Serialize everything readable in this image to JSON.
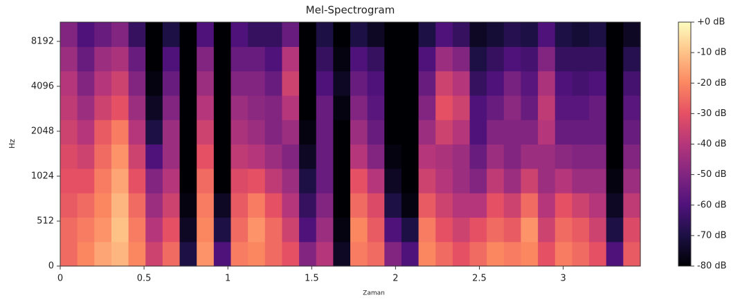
{
  "chart_data": {
    "type": "heatmap",
    "title": "Mel-Spectrogram",
    "xlabel": "Zaman",
    "ylabel": "Hz",
    "colormap": "magma",
    "xlim": [
      0,
      3.46
    ],
    "xticks": [
      0,
      0.5,
      1,
      1.5,
      2,
      2.5,
      3
    ],
    "ylim": [
      0,
      11025
    ],
    "yscale": "symlog",
    "ybase": 2,
    "linthresh": 512,
    "yticks": [
      0,
      512,
      1024,
      2048,
      4096,
      8192
    ],
    "clim": [
      -80,
      0
    ],
    "cticks": [
      {
        "value": 0,
        "label": "+0 dB"
      },
      {
        "value": -10,
        "label": "-10 dB"
      },
      {
        "value": -20,
        "label": "-20 dB"
      },
      {
        "value": -30,
        "label": "-30 dB"
      },
      {
        "value": -40,
        "label": "-40 dB"
      },
      {
        "value": -50,
        "label": "-50 dB"
      },
      {
        "value": -60,
        "label": "-60 dB"
      },
      {
        "value": -70,
        "label": "-70 dB"
      },
      {
        "value": -80,
        "label": "-80 dB"
      }
    ],
    "values": [
      [
        -25,
        -25,
        -28,
        -30,
        -32,
        -35,
        -38,
        -40,
        -45,
        -50
      ],
      [
        -20,
        -22,
        -25,
        -30,
        -35,
        -40,
        -45,
        -50,
        -55,
        -60
      ],
      [
        -15,
        -18,
        -20,
        -22,
        -25,
        -28,
        -35,
        -40,
        -45,
        -55
      ],
      [
        -12,
        -10,
        -12,
        -15,
        -18,
        -22,
        -30,
        -35,
        -42,
        -50
      ],
      [
        -20,
        -22,
        -25,
        -30,
        -35,
        -40,
        -45,
        -50,
        -55,
        -65
      ],
      [
        -35,
        -40,
        -45,
        -50,
        -60,
        -70,
        -75,
        -78,
        -80,
        -80
      ],
      [
        -25,
        -30,
        -35,
        -40,
        -45,
        -45,
        -50,
        -55,
        -60,
        -70
      ],
      [
        -70,
        -75,
        -78,
        -80,
        -80,
        -80,
        -80,
        -80,
        -80,
        -80
      ],
      [
        -18,
        -20,
        -22,
        -25,
        -30,
        -35,
        -40,
        -45,
        -50,
        -60
      ],
      [
        -60,
        -70,
        -75,
        -80,
        -80,
        -80,
        -80,
        -80,
        -80,
        -80
      ],
      [
        -22,
        -25,
        -28,
        -32,
        -38,
        -42,
        -45,
        -50,
        -55,
        -60
      ],
      [
        -20,
        -18,
        -22,
        -30,
        -40,
        -45,
        -48,
        -50,
        -55,
        -65
      ],
      [
        -25,
        -25,
        -30,
        -38,
        -45,
        -50,
        -50,
        -55,
        -60,
        -65
      ],
      [
        -30,
        -35,
        -40,
        -45,
        -50,
        -45,
        -40,
        -35,
        -40,
        -55
      ],
      [
        -50,
        -60,
        -65,
        -70,
        -75,
        -78,
        -80,
        -80,
        -80,
        -80
      ],
      [
        -40,
        -45,
        -50,
        -55,
        -55,
        -55,
        -55,
        -60,
        -65,
        -70
      ],
      [
        -75,
        -78,
        -80,
        -80,
        -80,
        -80,
        -78,
        -75,
        -78,
        -80
      ],
      [
        -22,
        -20,
        -25,
        -30,
        -40,
        -45,
        -50,
        -55,
        -60,
        -70
      ],
      [
        -25,
        -28,
        -32,
        -40,
        -50,
        -55,
        -58,
        -60,
        -65,
        -75
      ],
      [
        -50,
        -60,
        -70,
        -75,
        -78,
        -80,
        -80,
        -80,
        -80,
        -80
      ],
      [
        -60,
        -70,
        -78,
        -80,
        -80,
        -80,
        -80,
        -80,
        -80,
        -80
      ],
      [
        -20,
        -22,
        -28,
        -35,
        -40,
        -45,
        -50,
        -55,
        -60,
        -70
      ],
      [
        -25,
        -30,
        -35,
        -40,
        -42,
        -35,
        -30,
        -35,
        -45,
        -60
      ],
      [
        -30,
        -35,
        -40,
        -45,
        -45,
        -40,
        -35,
        -40,
        -50,
        -65
      ],
      [
        -25,
        -30,
        -40,
        -50,
        -55,
        -60,
        -60,
        -65,
        -70,
        -75
      ],
      [
        -20,
        -25,
        -30,
        -38,
        -45,
        -50,
        -55,
        -60,
        -65,
        -72
      ],
      [
        -22,
        -28,
        -35,
        -45,
        -50,
        -50,
        -48,
        -52,
        -60,
        -68
      ],
      [
        -20,
        -18,
        -25,
        -35,
        -45,
        -50,
        -55,
        -58,
        -62,
        -70
      ],
      [
        -30,
        -35,
        -40,
        -45,
        -45,
        -40,
        -38,
        -42,
        -50,
        -60
      ],
      [
        -22,
        -25,
        -30,
        -40,
        -48,
        -55,
        -58,
        -60,
        -65,
        -70
      ],
      [
        -25,
        -28,
        -35,
        -45,
        -50,
        -55,
        -58,
        -62,
        -65,
        -72
      ],
      [
        -30,
        -35,
        -40,
        -45,
        -50,
        -55,
        -55,
        -60,
        -65,
        -70
      ],
      [
        -60,
        -70,
        -75,
        -78,
        -80,
        -80,
        -80,
        -80,
        -80,
        -80
      ],
      [
        -28,
        -32,
        -38,
        -45,
        -50,
        -55,
        -58,
        -62,
        -68,
        -75
      ]
    ]
  }
}
